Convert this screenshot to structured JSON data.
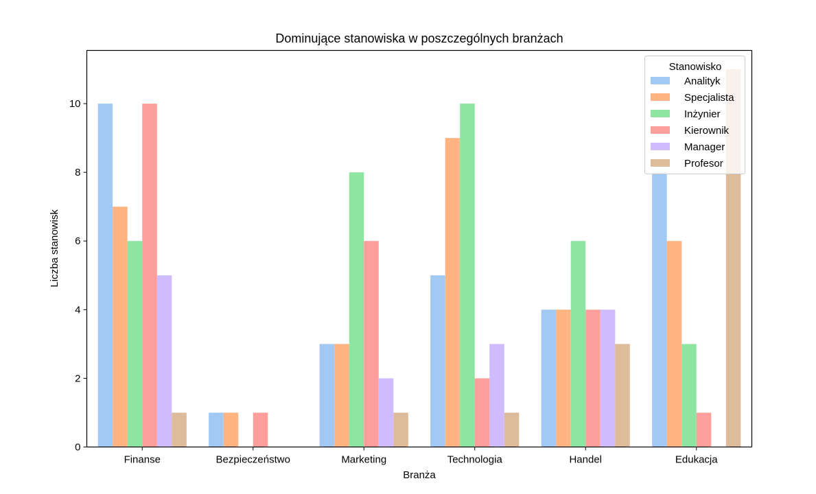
{
  "chart_data": {
    "type": "bar",
    "title": "Dominujące stanowiska w poszczególnych branżach",
    "xlabel": "Branża",
    "ylabel": "Liczba stanowisk",
    "ylim": [
      0,
      11.55
    ],
    "yticks": [
      0,
      2,
      4,
      6,
      8,
      10
    ],
    "grid": false,
    "legend_position": "top-right",
    "legend_title": "Stanowisko",
    "categories": [
      "Finanse",
      "Bezpieczeństwo",
      "Marketing",
      "Technologia",
      "Handel",
      "Edukacja"
    ],
    "series": [
      {
        "name": "Analityk",
        "color": "#a1c9f4",
        "values": [
          10,
          1,
          3,
          5,
          4,
          8
        ]
      },
      {
        "name": "Specjalista",
        "color": "#ffb482",
        "values": [
          7,
          1,
          3,
          9,
          4,
          6
        ]
      },
      {
        "name": "Inżynier",
        "color": "#8de5a1",
        "values": [
          6,
          null,
          8,
          10,
          6,
          3
        ]
      },
      {
        "name": "Kierownik",
        "color": "#ff9f9b",
        "values": [
          10,
          1,
          6,
          2,
          4,
          1
        ]
      },
      {
        "name": "Manager",
        "color": "#d0bbff",
        "values": [
          5,
          null,
          2,
          3,
          4,
          null
        ]
      },
      {
        "name": "Profesor",
        "color": "#debb9b",
        "values": [
          1,
          null,
          1,
          1,
          3,
          11
        ]
      }
    ]
  }
}
